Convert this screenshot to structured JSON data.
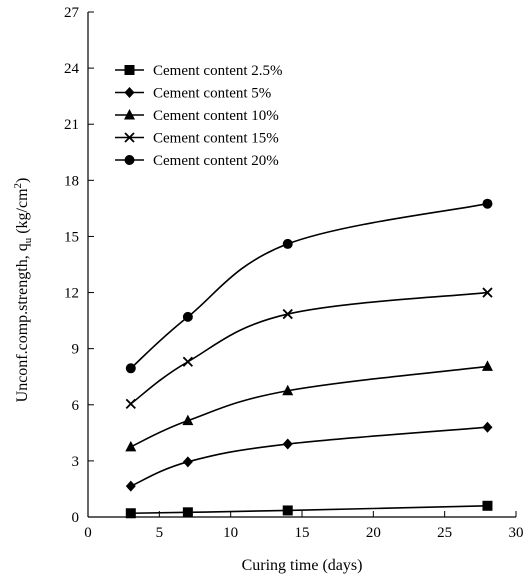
{
  "chart_data": {
    "type": "line",
    "xlabel": "Curing time (days)",
    "ylabel": {
      "prefix": "Unconf.comp.strength, q",
      "sub": "u",
      "unit_prefix": " (kg/cm",
      "sup": "2",
      "unit_suffix": ")"
    },
    "xlim": [
      0,
      30
    ],
    "ylim": [
      0,
      27
    ],
    "xticks": [
      0,
      5,
      10,
      15,
      20,
      25,
      30
    ],
    "yticks": [
      0,
      3,
      6,
      9,
      12,
      15,
      18,
      21,
      24,
      27
    ],
    "grid": false,
    "legend_position": "top-left",
    "series": [
      {
        "name": "Cement content 2.5%",
        "marker": "square",
        "x": [
          3,
          7,
          14,
          28
        ],
        "y": [
          0.2,
          0.25,
          0.35,
          0.6
        ]
      },
      {
        "name": "Cement content 5%",
        "marker": "diamond",
        "x": [
          3,
          7,
          14,
          28
        ],
        "y": [
          1.65,
          2.95,
          3.9,
          4.8
        ]
      },
      {
        "name": "Cement content 10%",
        "marker": "triangle",
        "x": [
          3,
          7,
          14,
          28
        ],
        "y": [
          3.75,
          5.15,
          6.75,
          8.05
        ]
      },
      {
        "name": "Cement content 15%",
        "marker": "cross",
        "x": [
          3,
          7,
          14,
          28
        ],
        "y": [
          6.05,
          8.3,
          10.85,
          12.0
        ]
      },
      {
        "name": "Cement content 20%",
        "marker": "circle",
        "x": [
          3,
          7,
          14,
          28
        ],
        "y": [
          7.95,
          10.7,
          14.6,
          16.75
        ]
      }
    ],
    "colors": {
      "line": "#000000",
      "background": "#ffffff"
    }
  }
}
